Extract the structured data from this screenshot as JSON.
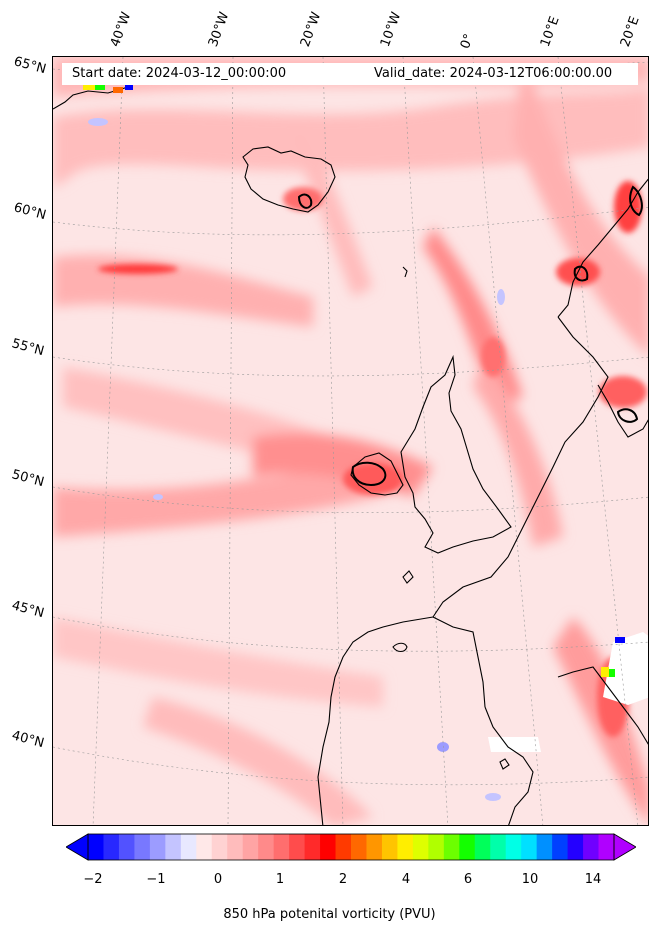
{
  "header": {
    "start_date": "Start date: 2024-03-12_00:00:00",
    "valid_date": "Valid_date: 2024-03-12T06:00:00.00"
  },
  "longitude_labels": [
    "40°W",
    "30°W",
    "20°W",
    "10°W",
    "0°",
    "10°E",
    "20°E"
  ],
  "latitude_labels": [
    "65°N",
    "60°N",
    "55°N",
    "50°N",
    "45°N",
    "40°N"
  ],
  "colorbar": {
    "tick_labels": [
      "−2",
      "−1",
      "0",
      "1",
      "2",
      "4",
      "6",
      "10",
      "14"
    ],
    "label": "850 hPa potenital vorticity (PVU)",
    "colors": [
      "#0000ff",
      "#2828ff",
      "#5252ff",
      "#7878ff",
      "#9c9cff",
      "#c4c4ff",
      "#e8e8ff",
      "#ffe8e8",
      "#ffd2d2",
      "#ffbcbc",
      "#ffa4a4",
      "#ff8a8a",
      "#ff6e6e",
      "#ff4c4c",
      "#ff2a2a",
      "#ff0000",
      "#ff3a00",
      "#ff6800",
      "#ff9600",
      "#ffc400",
      "#ffee00",
      "#deff00",
      "#b0ff00",
      "#6cff00",
      "#14ff00",
      "#00ff5a",
      "#00ffaa",
      "#00ffe6",
      "#00e0ff",
      "#0090ff",
      "#0040ff",
      "#2400ff",
      "#7000ff",
      "#b000ff"
    ],
    "under_color": "#0000ff",
    "over_color": "#b000ff"
  }
}
